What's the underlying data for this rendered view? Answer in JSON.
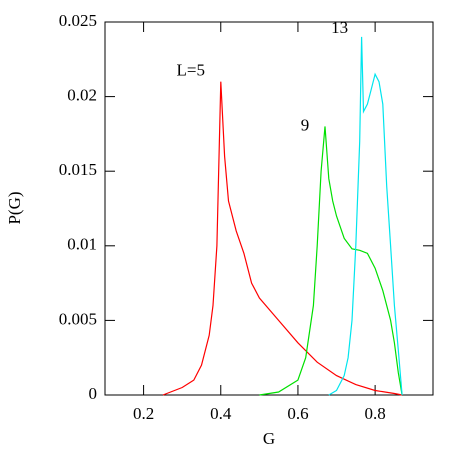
{
  "chart_data": {
    "type": "line",
    "xlabel": "G",
    "ylabel": "P(G)",
    "xlim": [
      0.1,
      0.95
    ],
    "ylim": [
      0,
      0.025
    ],
    "xticks": [
      0.2,
      0.4,
      0.6,
      0.8
    ],
    "yticks": [
      0,
      0.005,
      0.01,
      0.015,
      0.02,
      0.025
    ],
    "series": [
      {
        "name": "L=5",
        "color": "#ff0000",
        "x": [
          0.25,
          0.3,
          0.33,
          0.35,
          0.37,
          0.38,
          0.39,
          0.4,
          0.41,
          0.42,
          0.44,
          0.46,
          0.48,
          0.5,
          0.55,
          0.6,
          0.65,
          0.7,
          0.75,
          0.8,
          0.85,
          0.87
        ],
        "values": [
          0,
          0.0005,
          0.001,
          0.002,
          0.004,
          0.006,
          0.01,
          0.021,
          0.016,
          0.013,
          0.011,
          0.0095,
          0.0075,
          0.0065,
          0.005,
          0.0035,
          0.0022,
          0.0013,
          0.0007,
          0.0003,
          0.0001,
          0
        ]
      },
      {
        "name": "9",
        "color": "#00e000",
        "x": [
          0.5,
          0.55,
          0.6,
          0.62,
          0.64,
          0.65,
          0.66,
          0.67,
          0.68,
          0.69,
          0.7,
          0.72,
          0.74,
          0.76,
          0.78,
          0.8,
          0.82,
          0.84,
          0.85,
          0.86,
          0.87
        ],
        "values": [
          0,
          0.0002,
          0.001,
          0.0025,
          0.006,
          0.01,
          0.015,
          0.018,
          0.0145,
          0.013,
          0.012,
          0.0105,
          0.0098,
          0.0097,
          0.0095,
          0.0085,
          0.007,
          0.005,
          0.0035,
          0.0015,
          0
        ]
      },
      {
        "name": "13",
        "color": "#00e5ee",
        "x": [
          0.68,
          0.7,
          0.72,
          0.73,
          0.74,
          0.75,
          0.76,
          0.765,
          0.77,
          0.78,
          0.79,
          0.8,
          0.81,
          0.82,
          0.83,
          0.84,
          0.85,
          0.86,
          0.87
        ],
        "values": [
          0,
          0.0003,
          0.0013,
          0.0025,
          0.005,
          0.01,
          0.017,
          0.024,
          0.019,
          0.0195,
          0.0205,
          0.0215,
          0.021,
          0.0195,
          0.014,
          0.01,
          0.006,
          0.003,
          0
        ]
      }
    ]
  }
}
